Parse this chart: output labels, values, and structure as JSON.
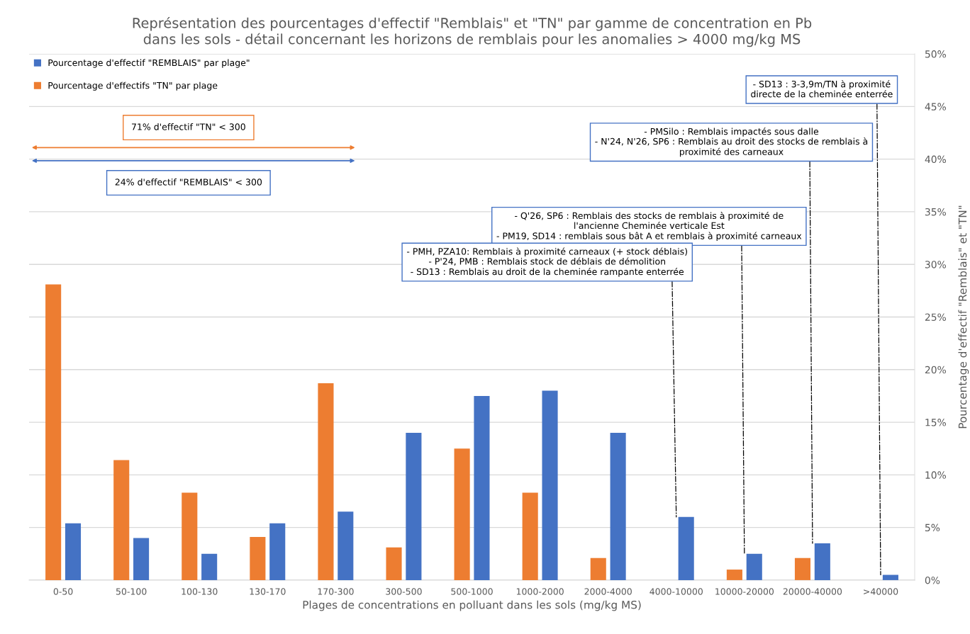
{
  "chart_data": {
    "type": "bar",
    "title": "Représentation des pourcentages d'effectif \"Remblais\" et \"TN\" par gamme de concentration en Pb\ndans les sols - détail concernant les horizons de remblais pour les anomalies > 4000 mg/kg MS",
    "xlabel": "Plages de concentrations en polluant dans les sols (mg/kg MS)",
    "ylabel": "Pourcentage d'effectif \"Remblais\" et \"TN\"",
    "categories": [
      "0-50",
      "50-100",
      "100-130",
      "130-170",
      "170-300",
      "300-500",
      "500-1000",
      "1000-2000",
      "2000-4000",
      "4000-10000",
      "10000-20000",
      "20000-40000",
      ">40000"
    ],
    "series": [
      {
        "name": "Pourcentage d'effectifs \"TN\" par plage",
        "color": "#ed7d31",
        "values": [
          28.1,
          11.4,
          8.3,
          4.1,
          18.7,
          3.1,
          12.5,
          8.3,
          2.1,
          null,
          1.0,
          2.1,
          null
        ]
      },
      {
        "name": "Pourcentage d'effectif \"REMBLAIS\" par plage\"",
        "color": "#4472c4",
        "values": [
          5.4,
          4.0,
          2.5,
          5.4,
          6.5,
          14.0,
          17.5,
          18.0,
          14.0,
          6.0,
          2.5,
          3.5,
          0.5
        ]
      }
    ],
    "ylim": [
      0,
      50
    ],
    "yticks": [
      {
        "value": 0,
        "label": "0%"
      },
      {
        "value": 5,
        "label": "5%"
      },
      {
        "value": 10,
        "label": "10%"
      },
      {
        "value": 15,
        "label": "15%"
      },
      {
        "value": 20,
        "label": "20%"
      },
      {
        "value": 25,
        "label": "25%"
      },
      {
        "value": 30,
        "label": "30%"
      },
      {
        "value": 35,
        "label": "35%"
      },
      {
        "value": 40,
        "label": "40%"
      },
      {
        "value": 45,
        "label": "45%"
      },
      {
        "value": 50,
        "label": "50%"
      }
    ],
    "grid": "y",
    "legend": "top left",
    "annotations": [
      "71% d'effectif \"TN\" < 300",
      "24% d'effectif \"REMBLAIS\" < 300",
      {
        "text": "- SD13 : 3-3,9m/TN à proximité\ndirecte de la cheminée enterrée",
        "x": ">40000",
        "y": 0.5
      },
      {
        "text": "- PMSilo : Remblais impactés sous dalle\n- N'24, N'26, SP6 : Remblais au droit des stocks de remblais à\nproximité des carneaux",
        "x": "20000-40000",
        "y": 3.5
      },
      {
        "text": "- Q'26, SP6 : Remblais des stocks de remblais à proximité de\nl'ancienne Cheminée verticale Est\n- PM19, SD14 : remblais sous bât A et remblais à proximité carneaux",
        "x": "10000-20000",
        "y": 2.5
      },
      {
        "text": "- PMH, PZA10: Remblais à proximité carneaux (+ stock déblais)\n- P'24, PMB : Remblais stock de déblais de démolition\n- SD13 : Remblais au droit de la cheminée rampante enterrée",
        "x": "4000-10000",
        "y": 6.0
      }
    ]
  }
}
